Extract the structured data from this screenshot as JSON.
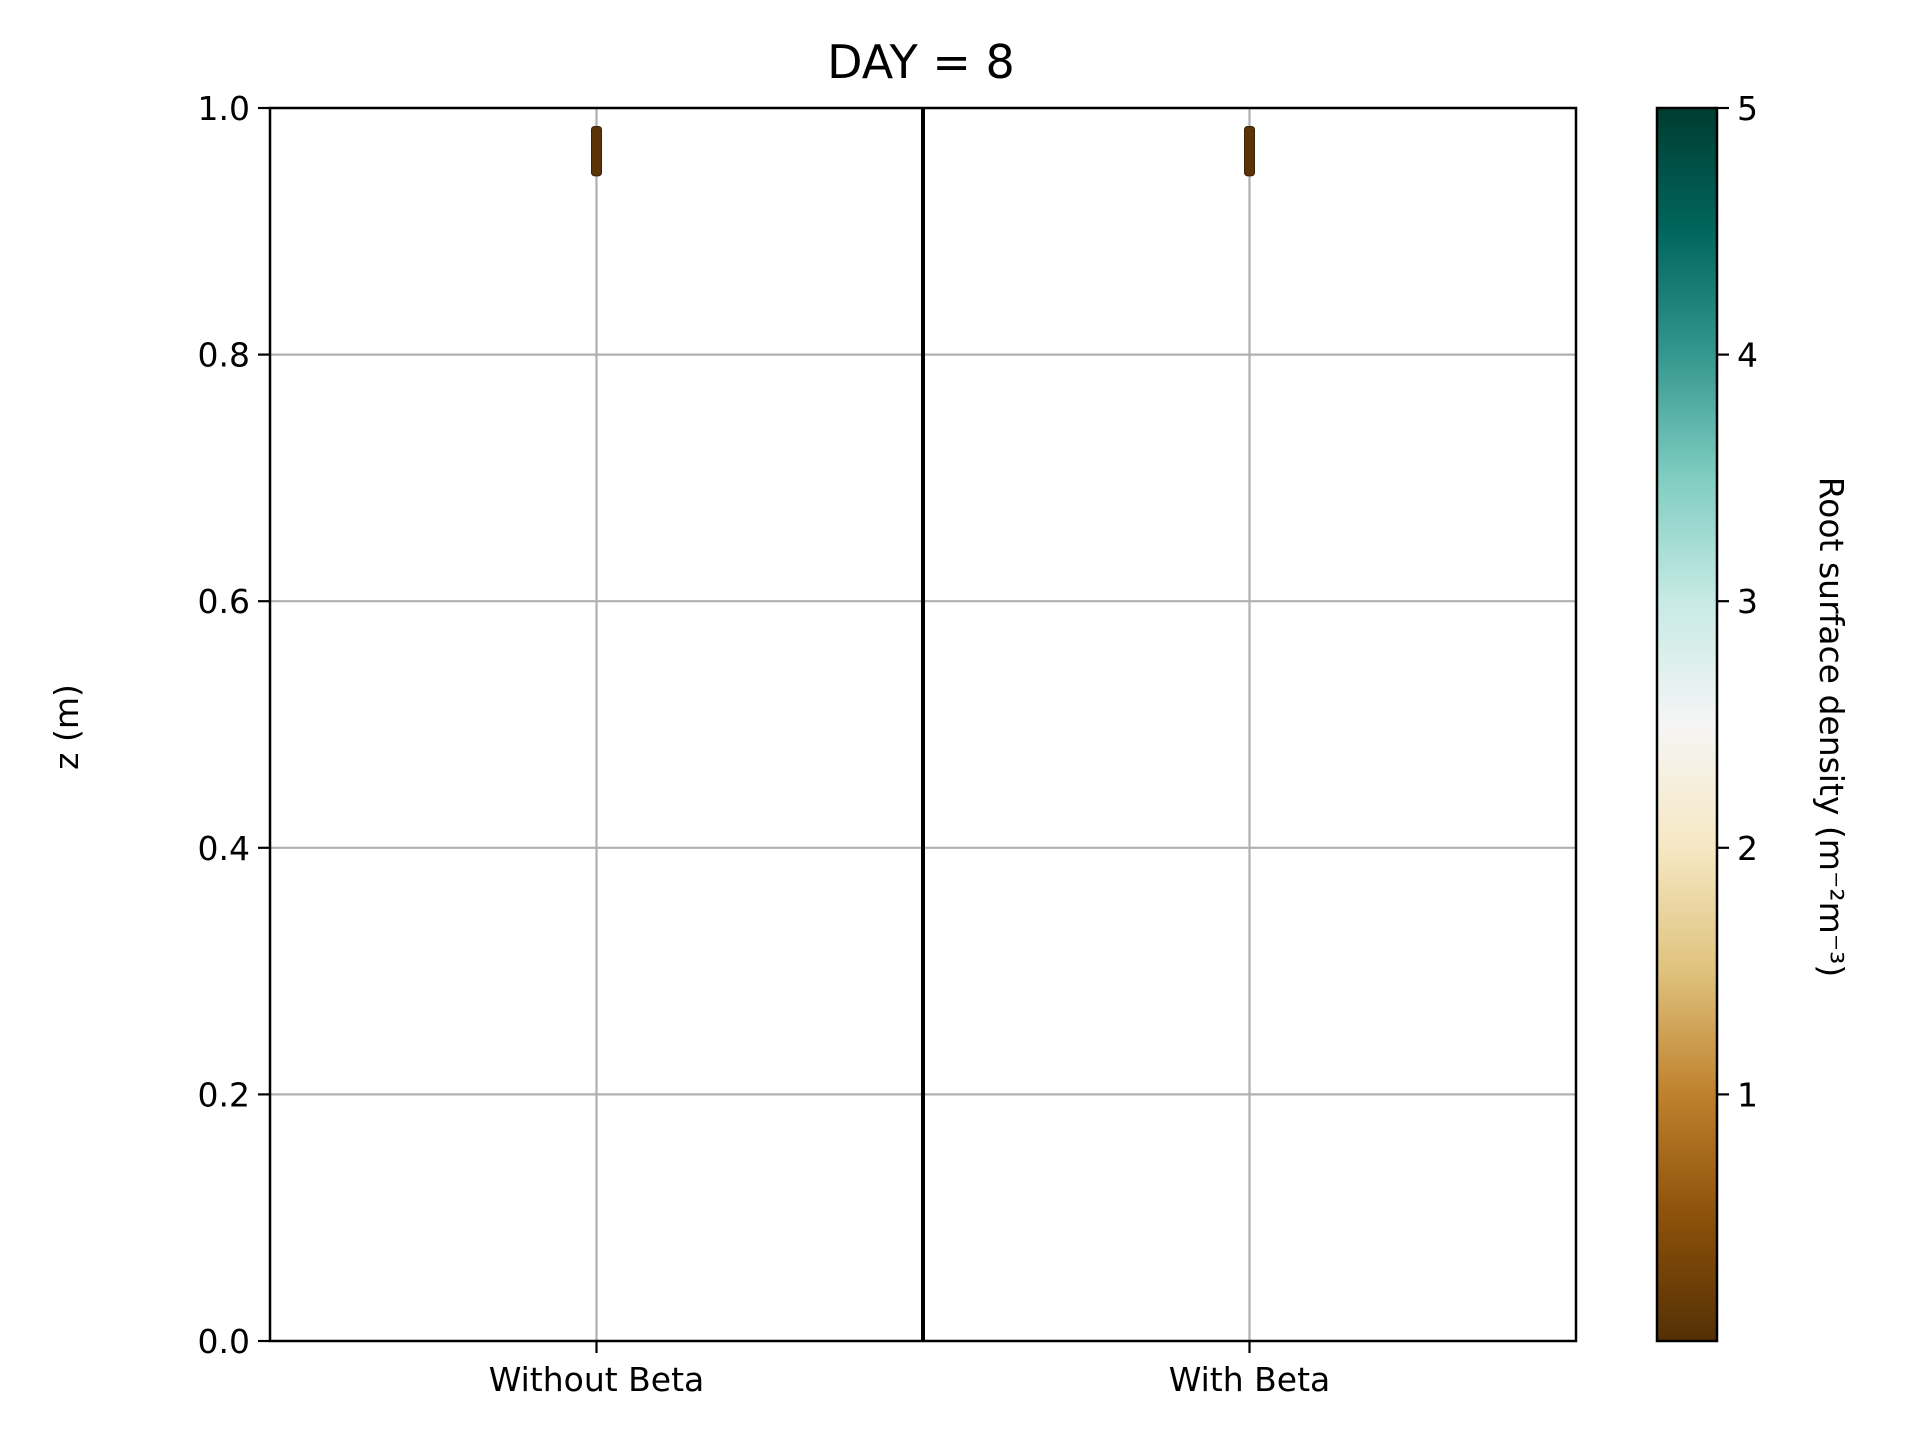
{
  "chart_data": {
    "type": "scatter",
    "title": "DAY = 8",
    "xlabel": "",
    "ylabel": "z (m)",
    "categories": [
      "Without Beta",
      "With Beta"
    ],
    "ylim": [
      0.0,
      1.0
    ],
    "yticks": [
      "0.0",
      "0.2",
      "0.4",
      "0.6",
      "0.8",
      "1.0"
    ],
    "grid": true,
    "series": [
      {
        "category": "Without Beta",
        "z_range": [
          0.945,
          0.985
        ],
        "density": 0.05
      },
      {
        "category": "With Beta",
        "z_range": [
          0.945,
          0.985
        ],
        "density": 0.05
      }
    ],
    "colorbar": {
      "label": "Root surface density (m⁻²m⁻³)",
      "range": [
        0,
        5
      ],
      "ticks": [
        "1",
        "2",
        "3",
        "4",
        "5"
      ],
      "colors": [
        "#543005",
        "#8c510a",
        "#bf812d",
        "#dfc27d",
        "#f6e8c3",
        "#f5f5f5",
        "#c7eae5",
        "#80cdc1",
        "#35978f",
        "#01665e",
        "#003c30"
      ]
    }
  }
}
